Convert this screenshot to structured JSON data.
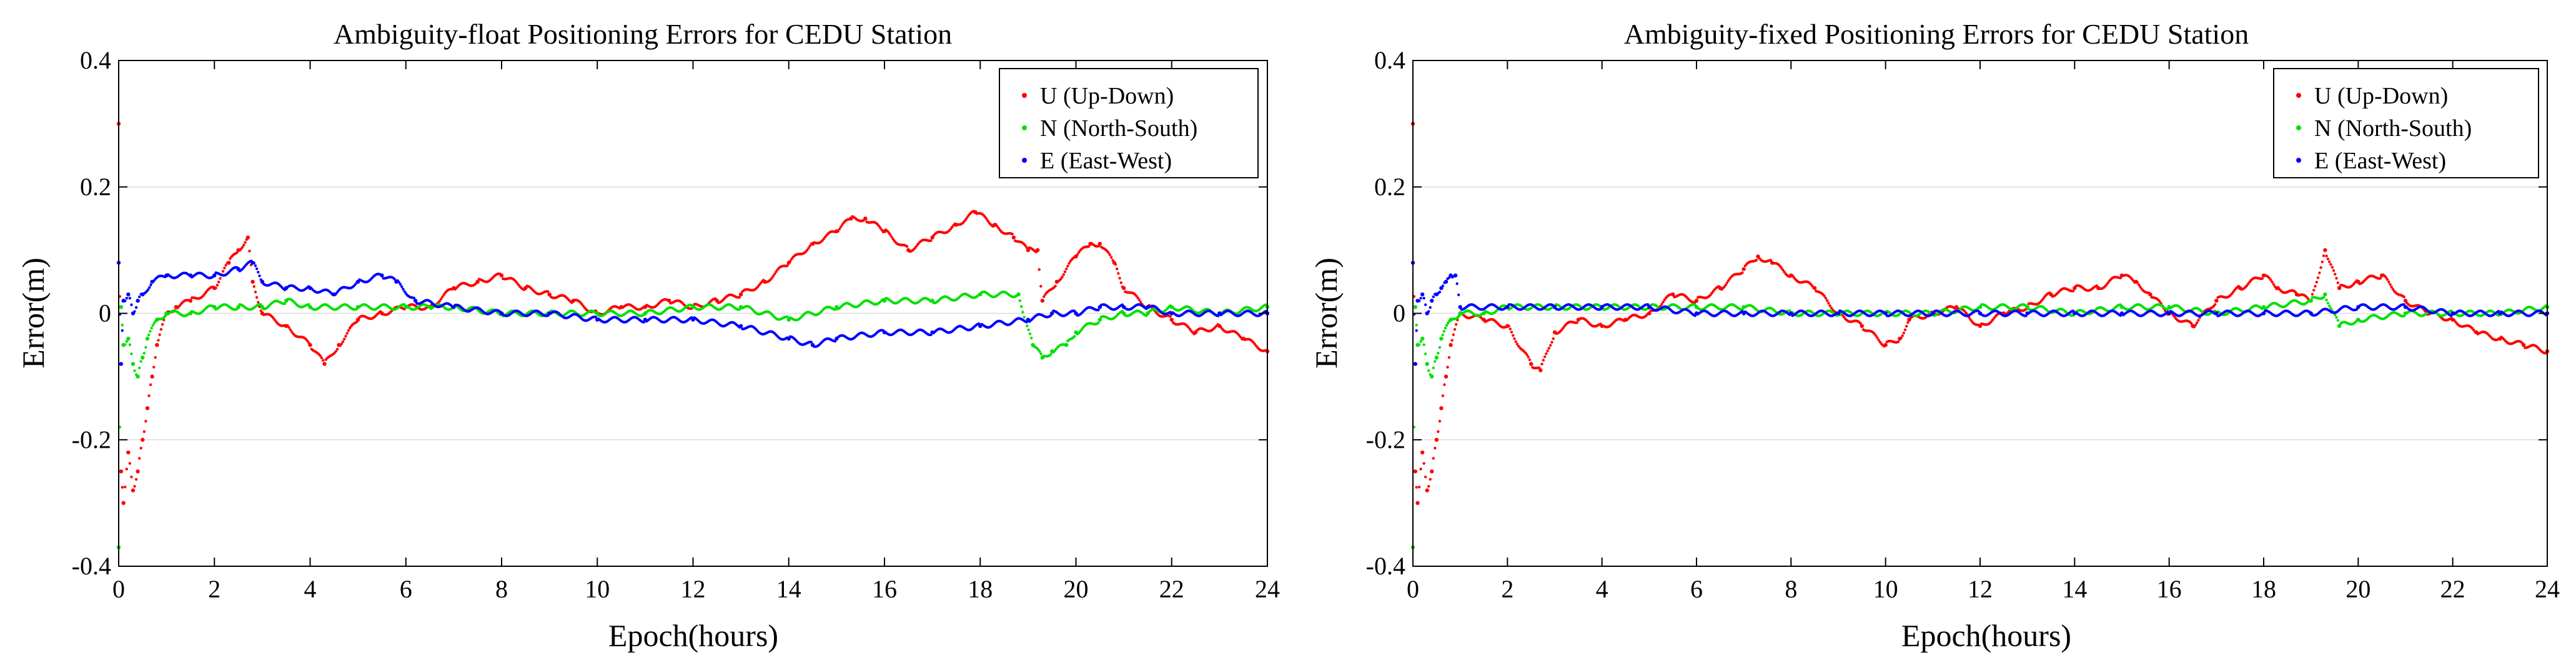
{
  "chart_data": [
    {
      "type": "scatter",
      "title": "Ambiguity-float Positioning Errors for CEDU Station",
      "xlabel": "Epoch(hours)",
      "ylabel": "Error(m)",
      "xlim": [
        0,
        24
      ],
      "ylim": [
        -0.4,
        0.4
      ],
      "xticks": [
        "0",
        "2",
        "4",
        "6",
        "8",
        "10",
        "12",
        "14",
        "16",
        "18",
        "20",
        "22",
        "24"
      ],
      "yticks": [
        "-0.4",
        "-0.2",
        "0",
        "0.2",
        "0.4"
      ],
      "grid": true,
      "legend_position": "top-right",
      "series": [
        {
          "name": "U (Up-Down)",
          "color": "#ff0000",
          "x": [
            0,
            0.05,
            0.1,
            0.2,
            0.3,
            0.4,
            0.5,
            0.6,
            0.7,
            0.8,
            1.0,
            1.2,
            1.5,
            2.0,
            2.3,
            2.5,
            2.7,
            2.8,
            3.0,
            3.5,
            4.0,
            4.3,
            4.6,
            5.0,
            5.5,
            6.0,
            6.5,
            7.0,
            7.5,
            8.0,
            8.5,
            9.0,
            9.5,
            10.0,
            10.5,
            11.0,
            11.5,
            12.0,
            12.5,
            13.0,
            13.5,
            14.0,
            14.5,
            15.0,
            15.3,
            15.6,
            16.0,
            16.5,
            17.0,
            17.5,
            17.9,
            18.3,
            18.7,
            19.0,
            19.2,
            19.3,
            19.6,
            20.0,
            20.3,
            20.5,
            20.8,
            21.0,
            21.5,
            22.0,
            22.5,
            23.0,
            23.5,
            24.0
          ],
          "y": [
            0.3,
            -0.25,
            -0.3,
            -0.22,
            -0.28,
            -0.25,
            -0.2,
            -0.15,
            -0.1,
            -0.05,
            0.0,
            0.01,
            0.02,
            0.04,
            0.08,
            0.1,
            0.12,
            0.05,
            0.0,
            -0.02,
            -0.05,
            -0.08,
            -0.05,
            -0.01,
            0.0,
            0.01,
            0.01,
            0.04,
            0.05,
            0.06,
            0.04,
            0.03,
            0.02,
            0.0,
            0.01,
            0.01,
            0.02,
            0.01,
            0.02,
            0.03,
            0.05,
            0.08,
            0.11,
            0.13,
            0.15,
            0.15,
            0.13,
            0.1,
            0.12,
            0.14,
            0.16,
            0.14,
            0.12,
            0.1,
            0.1,
            0.02,
            0.05,
            0.09,
            0.11,
            0.11,
            0.08,
            0.04,
            0.01,
            -0.01,
            -0.03,
            -0.02,
            -0.04,
            -0.06
          ]
        },
        {
          "name": "N (North-South)",
          "color": "#00e000",
          "x": [
            0,
            0.05,
            0.1,
            0.2,
            0.3,
            0.4,
            0.5,
            0.6,
            0.8,
            1.0,
            1.5,
            2.0,
            2.5,
            3.0,
            3.5,
            4.0,
            5.0,
            6.0,
            6.5,
            7.0,
            8.0,
            9.0,
            10.0,
            11.0,
            12.0,
            13.0,
            14.0,
            15.0,
            16.0,
            17.0,
            18.0,
            18.8,
            19.1,
            19.3,
            19.5,
            19.8,
            20.0,
            20.5,
            21.0,
            21.5,
            22.0,
            23.0,
            24.0
          ],
          "y": [
            -0.37,
            0.01,
            -0.05,
            -0.04,
            -0.08,
            -0.1,
            -0.07,
            -0.04,
            -0.01,
            0.0,
            0.0,
            0.01,
            0.01,
            0.01,
            0.02,
            0.01,
            0.01,
            0.01,
            0.01,
            0.01,
            0.0,
            0.0,
            0.0,
            0.0,
            0.01,
            0.01,
            -0.01,
            0.01,
            0.02,
            0.02,
            0.03,
            0.03,
            -0.05,
            -0.07,
            -0.06,
            -0.05,
            -0.03,
            -0.01,
            0.0,
            0.0,
            0.01,
            0.0,
            0.01
          ]
        },
        {
          "name": "E (East-West)",
          "color": "#0000ff",
          "x": [
            0,
            0.05,
            0.1,
            0.2,
            0.3,
            0.4,
            0.5,
            0.7,
            1.0,
            1.5,
            2.0,
            2.5,
            2.8,
            3.0,
            3.5,
            4.0,
            4.5,
            5.0,
            5.5,
            5.8,
            6.2,
            7.0,
            8.0,
            9.0,
            10.0,
            11.0,
            12.0,
            13.0,
            14.0,
            14.5,
            15.0,
            16.0,
            17.0,
            18.0,
            19.0,
            19.5,
            20.0,
            20.5,
            21.0,
            21.5,
            22.0,
            23.0,
            24.0
          ],
          "y": [
            0.08,
            -0.08,
            0.02,
            0.03,
            0.0,
            0.02,
            0.03,
            0.05,
            0.06,
            0.06,
            0.06,
            0.07,
            0.08,
            0.05,
            0.04,
            0.04,
            0.03,
            0.05,
            0.06,
            0.05,
            0.02,
            0.01,
            0.0,
            0.0,
            -0.01,
            -0.01,
            -0.01,
            -0.02,
            -0.04,
            -0.05,
            -0.04,
            -0.03,
            -0.03,
            -0.02,
            -0.01,
            0.0,
            0.0,
            0.01,
            0.01,
            0.01,
            0.0,
            0.0,
            0.0
          ]
        }
      ]
    },
    {
      "type": "scatter",
      "title": "Ambiguity-fixed Positioning Errors for CEDU Station",
      "xlabel": "Epoch(hours)",
      "ylabel": "Error(m)",
      "xlim": [
        0,
        24
      ],
      "ylim": [
        -0.4,
        0.4
      ],
      "xticks": [
        "0",
        "2",
        "4",
        "6",
        "8",
        "10",
        "12",
        "14",
        "16",
        "18",
        "20",
        "22",
        "24"
      ],
      "yticks": [
        "-0.4",
        "-0.2",
        "0",
        "0.2",
        "0.4"
      ],
      "grid": true,
      "legend_position": "top-right",
      "series": [
        {
          "name": "U (Up-Down)",
          "color": "#ff0000",
          "x": [
            0,
            0.05,
            0.1,
            0.2,
            0.3,
            0.4,
            0.5,
            0.6,
            0.7,
            0.8,
            1.0,
            1.5,
            2.0,
            2.5,
            2.7,
            3.0,
            3.5,
            4.0,
            4.5,
            5.0,
            5.5,
            6.0,
            6.5,
            7.0,
            7.3,
            7.6,
            8.0,
            8.5,
            9.0,
            9.5,
            10.0,
            10.3,
            10.5,
            11.0,
            11.5,
            12.0,
            12.5,
            13.0,
            13.5,
            14.0,
            14.5,
            15.0,
            15.3,
            15.6,
            16.0,
            16.5,
            17.0,
            17.5,
            18.0,
            18.3,
            18.7,
            19.0,
            19.3,
            19.6,
            20.0,
            20.5,
            21.0,
            21.5,
            22.0,
            22.5,
            23.0,
            23.5,
            24.0
          ],
          "y": [
            0.3,
            -0.25,
            -0.3,
            -0.22,
            -0.28,
            -0.25,
            -0.2,
            -0.15,
            -0.1,
            -0.05,
            0.0,
            -0.01,
            -0.02,
            -0.08,
            -0.09,
            -0.03,
            -0.01,
            -0.02,
            -0.01,
            0.0,
            0.03,
            0.02,
            0.04,
            0.07,
            0.09,
            0.08,
            0.06,
            0.04,
            0.0,
            -0.02,
            -0.05,
            -0.04,
            -0.01,
            0.0,
            0.01,
            -0.02,
            0.0,
            0.01,
            0.03,
            0.04,
            0.04,
            0.06,
            0.05,
            0.03,
            0.0,
            -0.02,
            0.02,
            0.04,
            0.06,
            0.04,
            0.03,
            0.02,
            0.1,
            0.04,
            0.05,
            0.06,
            0.02,
            0.0,
            -0.01,
            -0.03,
            -0.04,
            -0.05,
            -0.06
          ]
        },
        {
          "name": "N (North-South)",
          "color": "#00e000",
          "x": [
            0,
            0.05,
            0.1,
            0.2,
            0.3,
            0.4,
            0.5,
            0.6,
            0.8,
            1.0,
            1.5,
            2.0,
            3.0,
            4.0,
            5.0,
            6.0,
            7.0,
            8.0,
            9.0,
            10.0,
            11.0,
            12.0,
            13.0,
            14.0,
            15.0,
            16.0,
            17.0,
            18.0,
            19.0,
            19.3,
            19.6,
            20.0,
            21.0,
            22.0,
            23.0,
            24.0
          ],
          "y": [
            -0.37,
            0.01,
            -0.05,
            -0.04,
            -0.08,
            -0.1,
            -0.07,
            -0.04,
            -0.01,
            0.0,
            0.0,
            0.01,
            0.01,
            0.01,
            0.01,
            0.01,
            0.01,
            0.0,
            0.0,
            0.0,
            0.0,
            0.01,
            0.01,
            0.0,
            0.01,
            0.01,
            0.0,
            0.01,
            0.02,
            0.03,
            -0.02,
            -0.01,
            0.0,
            0.0,
            0.0,
            0.01
          ]
        },
        {
          "name": "E (East-West)",
          "color": "#0000ff",
          "x": [
            0,
            0.05,
            0.1,
            0.2,
            0.3,
            0.4,
            0.5,
            0.6,
            0.7,
            0.8,
            0.9,
            1.0,
            2.0,
            3.0,
            4.0,
            5.0,
            6.0,
            7.0,
            8.0,
            9.0,
            10.0,
            11.0,
            12.0,
            13.0,
            14.0,
            15.0,
            16.0,
            17.0,
            18.0,
            19.0,
            20.0,
            21.0,
            22.0,
            23.0,
            24.0
          ],
          "y": [
            0.08,
            -0.08,
            0.02,
            0.03,
            0.0,
            0.02,
            0.03,
            0.04,
            0.05,
            0.06,
            0.06,
            0.01,
            0.01,
            0.01,
            0.01,
            0.01,
            0.0,
            0.0,
            0.0,
            0.0,
            0.0,
            0.0,
            0.0,
            0.0,
            0.0,
            0.0,
            0.0,
            0.0,
            0.0,
            0.0,
            0.01,
            0.01,
            0.0,
            0.0,
            0.0
          ]
        }
      ]
    }
  ]
}
